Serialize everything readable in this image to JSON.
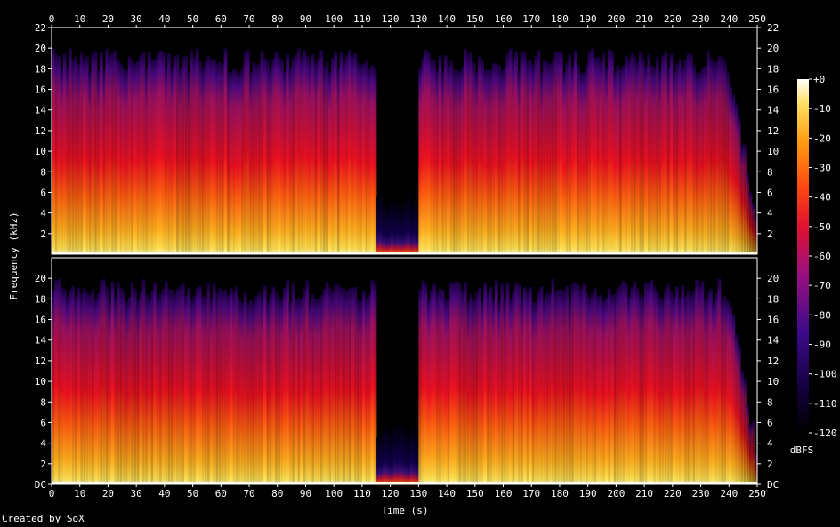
{
  "credit": "Created by SoX",
  "chart_data": {
    "type": "heatmap",
    "title": "",
    "xlabel": "Time (s)",
    "ylabel": "Frequency (kHz)",
    "xlim": [
      0,
      250
    ],
    "ylim": [
      0,
      22
    ],
    "x_ticks": [
      "0",
      "10",
      "20",
      "30",
      "40",
      "50",
      "60",
      "70",
      "80",
      "90",
      "100",
      "110",
      "120",
      "130",
      "140",
      "150",
      "160",
      "170",
      "180",
      "190",
      "200",
      "210",
      "220",
      "230",
      "240",
      "250"
    ],
    "y_ticks_top": [
      "2",
      "4",
      "6",
      "8",
      "10",
      "12",
      "14",
      "16",
      "18",
      "20",
      "22"
    ],
    "y_ticks_bottom": [
      "DC",
      "2",
      "4",
      "6",
      "8",
      "10",
      "12",
      "14",
      "16",
      "18",
      "20"
    ],
    "channels": 2,
    "colorbar": {
      "label": "dBFS",
      "range": [
        -120,
        0
      ],
      "ticks": [
        "+0",
        "-10",
        "-20",
        "-30",
        "-40",
        "-50",
        "-60",
        "-70",
        "-80",
        "-90",
        "-100",
        "-110",
        "-120"
      ]
    },
    "segments": [
      {
        "start": 0,
        "end": 115,
        "type": "full",
        "cutoff_khz": 20
      },
      {
        "start": 115,
        "end": 130,
        "type": "quiet",
        "cutoff_khz": 4
      },
      {
        "start": 130,
        "end": 240,
        "type": "full",
        "cutoff_khz": 20
      },
      {
        "start": 240,
        "end": 250,
        "type": "fade",
        "cutoff_khz": 4
      }
    ]
  }
}
